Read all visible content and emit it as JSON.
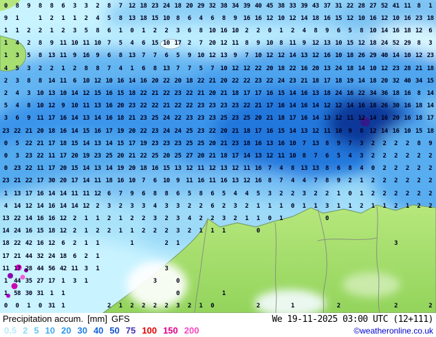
{
  "legend": {
    "title": "Precipitation accum.",
    "unit": "[mm]",
    "model": "GFS",
    "datetime": "We 19-11-2025 03:00 UTC (12+111)",
    "copyright": "©weatheronline.co.uk",
    "scale": [
      {
        "label": "0.5",
        "color": "#b9ebfa"
      },
      {
        "label": "2",
        "color": "#8cdcf5"
      },
      {
        "label": "5",
        "color": "#64c8f0"
      },
      {
        "label": "10",
        "color": "#46aaf0"
      },
      {
        "label": "20",
        "color": "#2d96ed"
      },
      {
        "label": "30",
        "color": "#1e7ee6"
      },
      {
        "label": "40",
        "color": "#1464dc"
      },
      {
        "label": "50",
        "color": "#0f50cd"
      },
      {
        "label": "75",
        "color": "#4632b9"
      },
      {
        "label": "100",
        "color": "#e10000"
      },
      {
        "label": "150",
        "color": "#e1008c"
      },
      {
        "label": "200",
        "color": "#fa46be"
      }
    ]
  },
  "map_colors": {
    "land": "#a0dc6e",
    "coast_edge": "#7aa06a",
    "sea_light": "#c6f2ff",
    "precip_dark": "#0f3899",
    "high_precip_magenta": "#e800d0",
    "number_text": "#00001e"
  },
  "map": {
    "grid_rows": [
      "0 8 9 8 8 6 3 3 2 8 7 12 18 23 24 18 20 29 32 38 34 39 40 45 38 33 39 43 37 31 22 28 27 52 41 11 8 1",
      "9 1 . 1 2 1 1 2 4 5 8 13 18 15 10 8 6 4 6 8 9 16 16 12 10 12 14 18 16 15 12 10 16 12 10 16 23 18",
      "1 1 2 2 1 2 3 5 8 6 1 0 1 2 2 3 6 8 10 16 10 2 2 0 1 2 4 8 9 6 5 8 10 14 16 18 12 6",
      "1 4 2 8 9 11 10 11 10 7 5 4 6 15 10 17 2 7 20 12 11 8 9 10 8 11 9 12 13 10 15 12 18 24 52 29 8 3",
      "1 3 5 8 13 11 9 16 9 6 8 13 7 7 6 5 9 10 12 13 9 7 10 12 12 14 13 12 16 10 18 26 29 40 14 10 12 23",
      "4 5 3 2 2 1 2 8 8 7 4 1 6 8 13 7 7 5 7 10 12 12 22 20 18 22 16 20 13 24 18 14 10 12 23 28 21 18",
      "2 3 8 8 14 11 6 10 12 10 16 14 16 20 22 20 18 22 21 20 22 22 23 22 24 23 21 18 17 18 19 14 18 20 32 40 34 15",
      "2 4 3 10 13 10 14 12 15 16 15 18 22 21 22 23 22 21 20 21 18 17 17 16 15 14 16 13 18 24 16 22 34 36 18 16 8 14",
      "5 4 8 10 12 9 10 11 13 16 20 23 22 22 21 22 22 23 23 23 23 22 21 17 16 14 16 14 12 12 14 16 18 26 30 16 18 14",
      "3 6 9 11 17 16 14 13 14 16 18 21 23 25 24 22 23 23 23 25 23 25 20 21 18 17 16 14 13 12 11 12 14 16 20 16 18 17",
      "23 22 21 20 18 16 14 15 16 17 19 20 22 23 24 24 25 23 22 20 21 18 17 16 15 14 13 12 11 10 9 8 12 14 16 10 15 18",
      "0 5 22 21 17 18 15 14 13 14 15 17 19 23 23 23 25 25 20 21 23 18 16 13 16 10 7 13 8 9 7 3 2 2 2 2 8 9",
      "0 3 23 22 11 17 20 19 23 25 20 21 22 25 20 25 27 20 21 18 17 14 13 12 11 10 8 7 6 5 4 3 2 2 2 2 2 2",
      "0 23 22 11 17 20 15 14 13 14 19 20 18 16 15 13 12 11 12 13 12 11 16 7 4 8 13 13 8 6 8 4 0 2 2 2 2 2",
      "23 21 22 17 30 20 17 14 11 18 16 10 7 6 10 9 11 16 11 16 13 12 16 8 7 4 4 7 8 9 2 1 2 2 2 2 2 2",
      "1 13 17 16 14 14 11 11 12 6 7 9 6 8 8 6 5 8 6 5 4 4 5 3 2 2 3 2 2 1 0 1 2 2 2 2 2 2",
      "4 14 12 14 16 14 14 12 2 3 2 3 3 4 3 3 2 2 6 2 3 2 1 1 1 0 1 1 3 1 1 2 1 1 2 1 2 2",
      "13 22 14 16 16 12 2 1 1 2 1 2 2 3 2 3 4 2 2 3 2 1 1 0 1 . . . 0 . . . . . . . . .",
      "14 24 16 15 18 12 2 1 2 2 1 1 2 2 2 3 2 1 1 1 . . 0 . . . . . . . . . . . . . . .",
      "18 22 42 16 12 6 2 1 1 . . 1 . . 2 1 . . . . . . . . . . . . . . . . . . 3 . . .",
      "17 21 44 32 24 18 6 2 1 . . . . . . . . . . . . . . . . . . . . . . . . . . . . .",
      "11 17 28 44 56 42 11 3 1 . . . . . 3 . . . . . . . . . . . . . . . . . . . . . . .",
      "1 44 35 27 17 1 3 1 . . . . . 3 . 0 . . . . . . . . . . . . . . . . . . . . . .",
      "1 58 30 31 1 1 . . . . . . . . . 0 . . . 1 . . . . . . . . . . . . . . . . . .",
      "0 0 1 0 31 1 . . . 2 1 2 2 2 2 3 2 1 0 . . . 2 . . 1 . . . 2 . . . . 2 . . 2"
    ]
  }
}
